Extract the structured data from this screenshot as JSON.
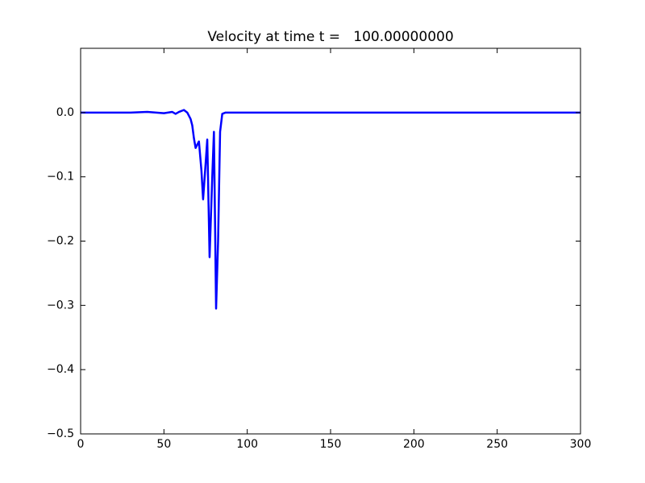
{
  "chart_data": {
    "type": "line",
    "title": "Velocity at time t =   100.00000000",
    "x": [
      0,
      30,
      40,
      50,
      55,
      57,
      59,
      62,
      64,
      66,
      67,
      68,
      69,
      70,
      71,
      72.5,
      73.5,
      75,
      76,
      77.4,
      79,
      80,
      81.3,
      82.5,
      83.7,
      85,
      87,
      300
    ],
    "values": [
      0,
      0,
      0.001,
      -0.001,
      0.001,
      -0.002,
      0.001,
      0.004,
      0,
      -0.01,
      -0.02,
      -0.04,
      -0.055,
      -0.05,
      -0.045,
      -0.09,
      -0.135,
      -0.08,
      -0.042,
      -0.225,
      -0.1,
      -0.03,
      -0.305,
      -0.2,
      -0.03,
      -0.002,
      0,
      0
    ],
    "color": "#0000ff",
    "xlim": [
      0,
      300
    ],
    "xticks": [
      0,
      50,
      100,
      150,
      200,
      250,
      300
    ],
    "ylim": [
      -0.5,
      0.1
    ],
    "yticks": [
      {
        "value": -0.5,
        "label": "−0.5"
      },
      {
        "value": -0.4,
        "label": "−0.4"
      },
      {
        "value": -0.3,
        "label": "−0.3"
      },
      {
        "value": -0.2,
        "label": "−0.2"
      },
      {
        "value": -0.1,
        "label": "−0.1"
      },
      {
        "value": 0,
        "label": "0.0"
      }
    ],
    "grid": false
  }
}
